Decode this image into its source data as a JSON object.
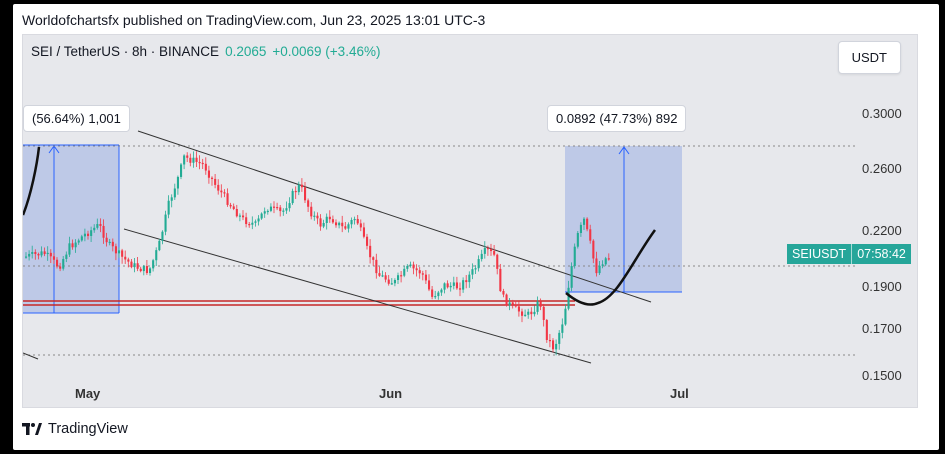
{
  "header": {
    "attribution": "Worldofchartsfx published on TradingView.com, Jun 23, 2025 13:01 UTC-3"
  },
  "symbol": {
    "name": "SEI / TetherUS · 8h · BINANCE",
    "price": "0.2065",
    "change": "+0.0069 (+3.46%)",
    "color_up": "#22ab94",
    "color_down": "#f23645"
  },
  "currency_button": "USDT",
  "measure_left": "(56.64%) 1,001",
  "measure_right": "0.0892 (47.73%) 892",
  "price_axis": [
    {
      "label": "0.3000",
      "value": 0.3
    },
    {
      "label": "0.2600",
      "value": 0.26
    },
    {
      "label": "0.2200",
      "value": 0.22
    },
    {
      "label": "0.1900",
      "value": 0.19
    },
    {
      "label": "0.1700",
      "value": 0.17
    },
    {
      "label": "0.1500",
      "value": 0.15
    }
  ],
  "time_axis": [
    "May",
    "Jun",
    "Jul"
  ],
  "ticker_tag": {
    "symbol": "SEIUSDT",
    "countdown": "07:58:42"
  },
  "footer": {
    "brand": "TradingView"
  }
}
